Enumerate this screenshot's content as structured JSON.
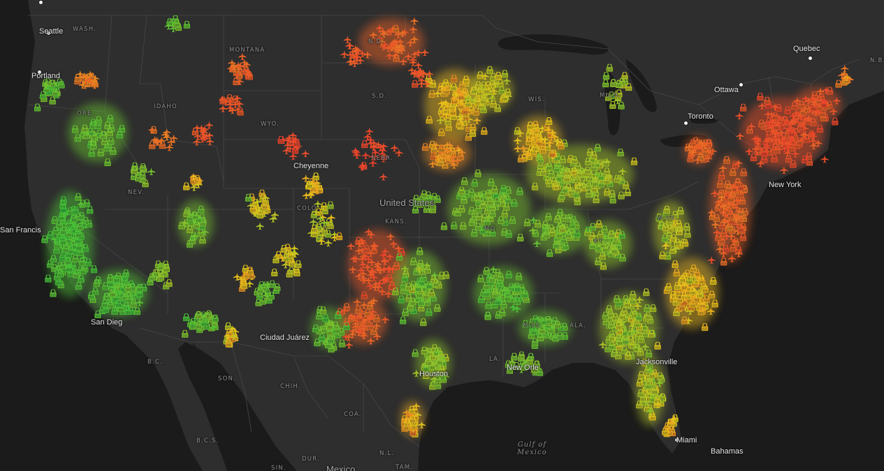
{
  "map": {
    "colors": {
      "land": "#2e2e2e",
      "water": "#1c1c1c",
      "border": "#4a4a4a",
      "gradient_low": "#2ebd3c",
      "gradient_mid": "#e8c41a",
      "gradient_high": "#e83a2c"
    },
    "icons": [
      "airplane-icon",
      "lock-icon"
    ],
    "labels": {
      "seattle": "Seattle",
      "portland": "Portland",
      "san_francisco": "San Francis",
      "san_diego": "San Dieg",
      "cheyenne": "Cheyenne",
      "united_states": "United States",
      "new_york": "New York",
      "toronto": "Toronto",
      "ottawa": "Ottawa",
      "quebec": "Quebec",
      "houston": "Houston",
      "new_orleans": "New Orle",
      "jacksonville": "Jacksonville",
      "miami": "Miami",
      "juarez": "Ciudad Juárez",
      "bahamas": "Bahamas",
      "mexico": "Mexico",
      "gulf_of_mexico": "Gulf of\nMexico",
      "wash": "WASH.",
      "montana": "MONTANA",
      "idaho": "IDAHO",
      "ore": "ORE.",
      "wyo": "WYO.",
      "nev": "NEV.",
      "nd": "N.D.",
      "sd": "S.D.",
      "nebr": "NEBR.",
      "kans": "KANS.",
      "colo": "COLO.",
      "mo": "MO.",
      "ky": "KY.",
      "mich": "MICH.",
      "wis": "WIS.",
      "wva": "W.VA.",
      "ala": "ALA.",
      "miss": "MISS.",
      "la": "LA.",
      "nb": "N.B.",
      "bc": "B.C.",
      "son": "SON.",
      "chih": "CHIH.",
      "coa": "COA.",
      "nl": "N.L.",
      "bcs": "B.C.S.",
      "dur": "DUR.",
      "sin": "SIN.",
      "tam": "TAM."
    }
  }
}
